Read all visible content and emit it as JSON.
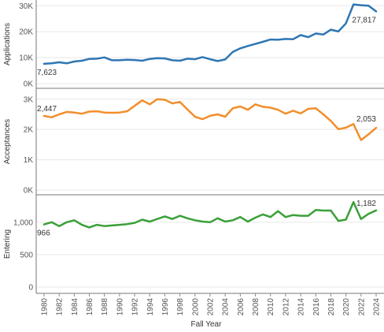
{
  "chart_data": {
    "type": "line",
    "xlabel": "Fall Year",
    "x_ticks": [
      "1980",
      "1982",
      "1984",
      "1986",
      "1988",
      "1990",
      "1992",
      "1994",
      "1996",
      "1998",
      "2000",
      "2002",
      "2004",
      "2006",
      "2008",
      "2010",
      "2012",
      "2014",
      "2016",
      "2018",
      "2020",
      "2022",
      "2024"
    ],
    "x": [
      1980,
      1981,
      1982,
      1983,
      1984,
      1985,
      1986,
      1987,
      1988,
      1989,
      1990,
      1991,
      1992,
      1993,
      1994,
      1995,
      1996,
      1997,
      1998,
      1999,
      2000,
      2001,
      2002,
      2003,
      2004,
      2005,
      2006,
      2007,
      2008,
      2009,
      2010,
      2011,
      2012,
      2013,
      2014,
      2015,
      2016,
      2017,
      2018,
      2019,
      2020,
      2021,
      2022,
      2023,
      2024
    ],
    "grid": "horizontal",
    "panels": [
      {
        "ylabel": "Applications",
        "color": "#2e76b3",
        "ylim": [
          0,
          31000
        ],
        "yticks": [
          {
            "v": 0,
            "t": "0K"
          },
          {
            "v": 10000,
            "t": "10K"
          },
          {
            "v": 20000,
            "t": "20K"
          },
          {
            "v": 30000,
            "t": "30K"
          }
        ],
        "values": [
          7623,
          7800,
          8200,
          7800,
          8500,
          8800,
          9500,
          9600,
          10100,
          9000,
          9000,
          9200,
          9100,
          8800,
          9500,
          9800,
          9700,
          9000,
          8800,
          9600,
          9400,
          10200,
          9400,
          8700,
          9300,
          12200,
          13600,
          14500,
          15300,
          16100,
          17000,
          16900,
          17200,
          17100,
          18700,
          17900,
          19300,
          18900,
          20800,
          20100,
          23200,
          30500,
          30200,
          30000,
          27817
        ],
        "labels": {
          "first": "7,623",
          "last": "27,817"
        }
      },
      {
        "ylabel": "Acceptances",
        "color": "#f28e2b",
        "ylim": [
          0,
          3150
        ],
        "yticks": [
          {
            "v": 0,
            "t": "0K"
          },
          {
            "v": 1000,
            "t": "1K"
          },
          {
            "v": 2000,
            "t": "2K"
          },
          {
            "v": 3000,
            "t": "3K"
          }
        ],
        "values": [
          2447,
          2400,
          2500,
          2580,
          2560,
          2520,
          2590,
          2600,
          2560,
          2550,
          2560,
          2600,
          2780,
          2960,
          2830,
          3000,
          2980,
          2860,
          2910,
          2660,
          2420,
          2340,
          2450,
          2500,
          2420,
          2700,
          2760,
          2650,
          2830,
          2750,
          2720,
          2650,
          2520,
          2620,
          2530,
          2680,
          2700,
          2500,
          2280,
          2010,
          2060,
          2180,
          1650,
          1840,
          2053
        ],
        "labels": {
          "first": "2,447",
          "last": "2,053"
        }
      },
      {
        "ylabel": "Entering",
        "color": "#3aa038",
        "ylim": [
          0,
          1350
        ],
        "yticks": [
          {
            "v": 0,
            "t": "0"
          },
          {
            "v": 500,
            "t": "500"
          },
          {
            "v": 1000,
            "t": "1,000"
          }
        ],
        "values": [
          966,
          1000,
          940,
          1000,
          1030,
          960,
          920,
          960,
          940,
          950,
          960,
          970,
          990,
          1040,
          1010,
          1050,
          1090,
          1050,
          1100,
          1060,
          1030,
          1010,
          1000,
          1060,
          1010,
          1030,
          1080,
          1010,
          1070,
          1120,
          1080,
          1170,
          1080,
          1110,
          1100,
          1100,
          1190,
          1180,
          1180,
          1020,
          1040,
          1310,
          1050,
          1130,
          1182
        ],
        "labels": {
          "first": "966",
          "last": "1,182"
        }
      }
    ]
  }
}
